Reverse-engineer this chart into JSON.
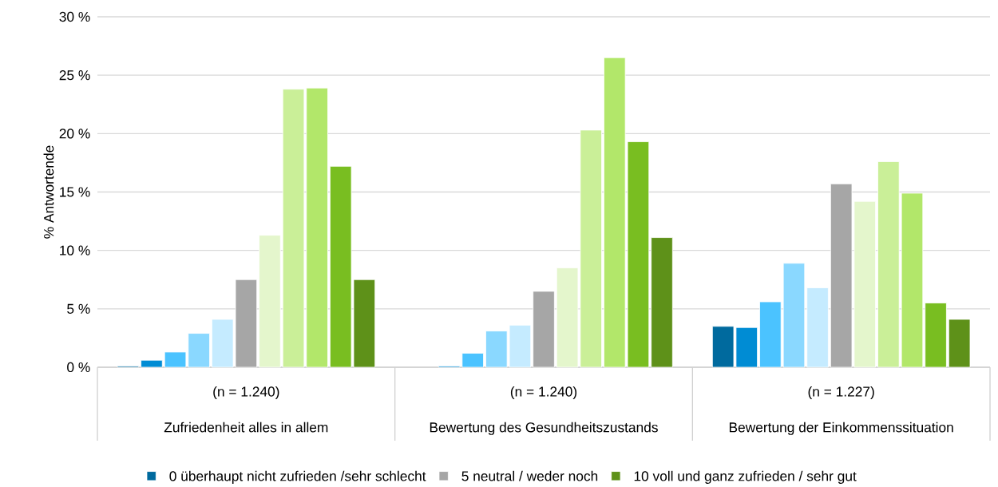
{
  "chart_data": {
    "type": "bar",
    "ylabel": "% Antwortende",
    "categories": [
      "Zufriedenheit alles in allem",
      "Bewertung des Gesundheitszustands",
      "Bewertung der Einkommenssituation"
    ],
    "annotations": [
      "(n = 1.240)",
      "(n = 1.240)",
      "(n = 1.227)"
    ],
    "ylim": [
      0,
      30
    ],
    "yticks": [
      {
        "value": 0,
        "label": "0 %"
      },
      {
        "value": 5,
        "label": "5 %"
      },
      {
        "value": 10,
        "label": "10 %"
      },
      {
        "value": 15,
        "label": "15 %"
      },
      {
        "value": 20,
        "label": "20 %"
      },
      {
        "value": 25,
        "label": "25 %"
      },
      {
        "value": 30,
        "label": "30 %"
      }
    ],
    "grid": "y",
    "legend": "bottom",
    "series": [
      {
        "name": "0 überhaupt nicht zufrieden /sehr schlecht",
        "color": "#006a9e",
        "values": [
          0.1,
          null,
          3.5
        ]
      },
      {
        "color": "#008cd4",
        "values": [
          0.6,
          0.1,
          3.4
        ]
      },
      {
        "color": "#4bc3ff",
        "values": [
          1.3,
          1.2,
          5.6
        ]
      },
      {
        "color": "#8ad8ff",
        "values": [
          2.9,
          3.1,
          8.9
        ]
      },
      {
        "color": "#c5ebff",
        "values": [
          4.1,
          3.6,
          6.8
        ]
      },
      {
        "name": "5 neutral / weder noch",
        "color": "#a6a6a6",
        "values": [
          7.5,
          6.5,
          15.7
        ]
      },
      {
        "color": "#e4f6cc",
        "values": [
          11.3,
          8.5,
          14.2
        ]
      },
      {
        "color": "#caef98",
        "values": [
          23.8,
          20.3,
          17.6
        ]
      },
      {
        "color": "#b2e76a",
        "values": [
          23.9,
          26.5,
          14.9
        ]
      },
      {
        "color": "#79be21",
        "values": [
          17.2,
          19.3,
          5.5
        ]
      },
      {
        "name": "10 voll und ganz zufrieden / sehr gut",
        "color": "#5e9119",
        "values": [
          7.5,
          11.1,
          4.1
        ]
      }
    ]
  }
}
